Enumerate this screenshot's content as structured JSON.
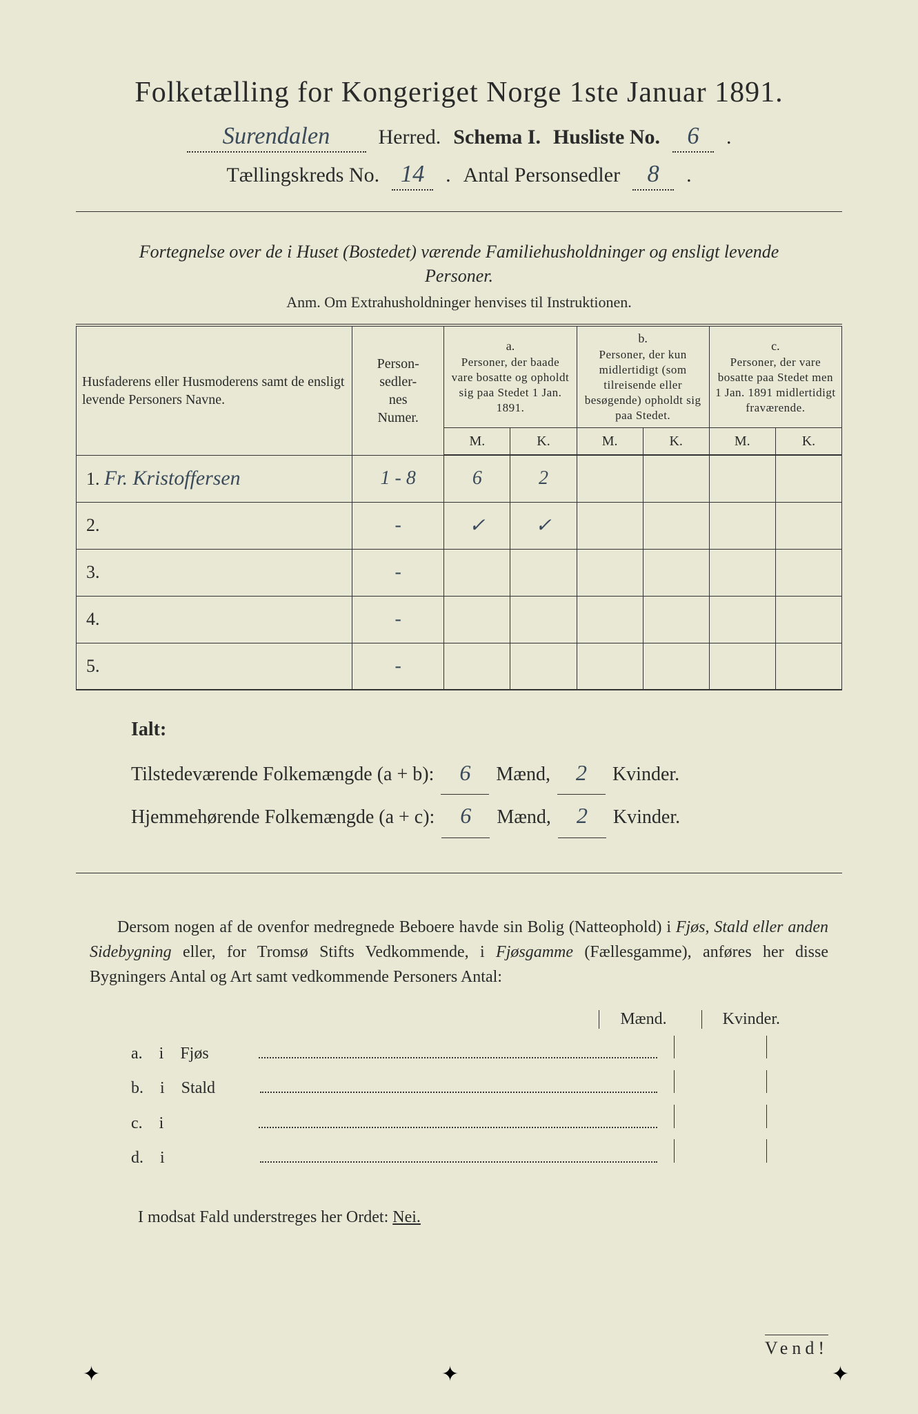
{
  "colors": {
    "paper": "#e8e8d4",
    "ink": "#2a2a2a",
    "handwriting": "#3a4a5a",
    "outer": "#1a1a1a"
  },
  "title": "Folketælling for Kongeriget Norge 1ste Januar 1891.",
  "header": {
    "herred_value": "Surendalen",
    "herred_label": "Herred.",
    "schema_label": "Schema I.",
    "husliste_label": "Husliste No.",
    "husliste_value": "6",
    "kreds_label": "Tællingskreds No.",
    "kreds_value": "14",
    "antal_label": "Antal Personsedler",
    "antal_value": "8"
  },
  "subhead": "Fortegnelse over de i Huset (Bostedet) værende Familiehusholdninger og ensligt levende Personer.",
  "anm": "Anm.  Om Extrahusholdninger henvises til Instruktionen.",
  "table": {
    "col_name": "Husfaderens eller Husmoderens samt de ensligt levende Personers Navne.",
    "col_num": "Person-\nsedler-\nnes\nNumer.",
    "a_label": "a.",
    "a_desc": "Personer, der baade vare bosatte og opholdt sig paa Stedet 1 Jan. 1891.",
    "b_label": "b.",
    "b_desc": "Personer, der kun midlertidigt (som tilreisende eller besøgende) opholdt sig paa Stedet.",
    "c_label": "c.",
    "c_desc": "Personer, der vare bosatte paa Stedet men 1 Jan. 1891 midlertidigt fraværende.",
    "M": "M.",
    "K": "K.",
    "rows": [
      {
        "n": "1.",
        "name": "Fr. Kristoffersen",
        "num": "1 - 8",
        "aM": "6",
        "aK": "2",
        "bM": "",
        "bK": "",
        "cM": "",
        "cK": ""
      },
      {
        "n": "2.",
        "name": "",
        "num": "-",
        "aM": "✓",
        "aK": "✓",
        "bM": "",
        "bK": "",
        "cM": "",
        "cK": ""
      },
      {
        "n": "3.",
        "name": "",
        "num": "-",
        "aM": "",
        "aK": "",
        "bM": "",
        "bK": "",
        "cM": "",
        "cK": ""
      },
      {
        "n": "4.",
        "name": "",
        "num": "-",
        "aM": "",
        "aK": "",
        "bM": "",
        "bK": "",
        "cM": "",
        "cK": ""
      },
      {
        "n": "5.",
        "name": "",
        "num": "-",
        "aM": "",
        "aK": "",
        "bM": "",
        "bK": "",
        "cM": "",
        "cK": ""
      }
    ]
  },
  "ialt": {
    "label": "Ialt:",
    "line1_pre": "Tilstedeværende Folkemængde (a + b):",
    "line2_pre": "Hjemmehørende Folkemængde (a + c):",
    "maend": "Mænd,",
    "kvinder": "Kvinder.",
    "v1m": "6",
    "v1k": "2",
    "v2m": "6",
    "v2k": "2"
  },
  "para": {
    "text_a": "Dersom nogen af de ovenfor medregnede Beboere havde sin Bolig (Natteophold) i ",
    "it1": "Fjøs, Stald eller anden Sidebygning",
    "text_b": " eller, for Tromsø Stifts Vedkommende, i ",
    "it2": "Fjøsgamme",
    "text_c": " (Fællesgamme), anføres her disse Bygningers Antal og Art samt vedkommende Personers Antal:"
  },
  "mk_head": {
    "m": "Mænd.",
    "k": "Kvinder."
  },
  "buildings": [
    {
      "letter": "a.",
      "i": "i",
      "label": "Fjøs"
    },
    {
      "letter": "b.",
      "i": "i",
      "label": "Stald"
    },
    {
      "letter": "c.",
      "i": "i",
      "label": ""
    },
    {
      "letter": "d.",
      "i": "i",
      "label": ""
    }
  ],
  "nei": {
    "pre": "I modsat Fald understreges her Ordet: ",
    "word": "Nei."
  },
  "vend": "Vend!"
}
